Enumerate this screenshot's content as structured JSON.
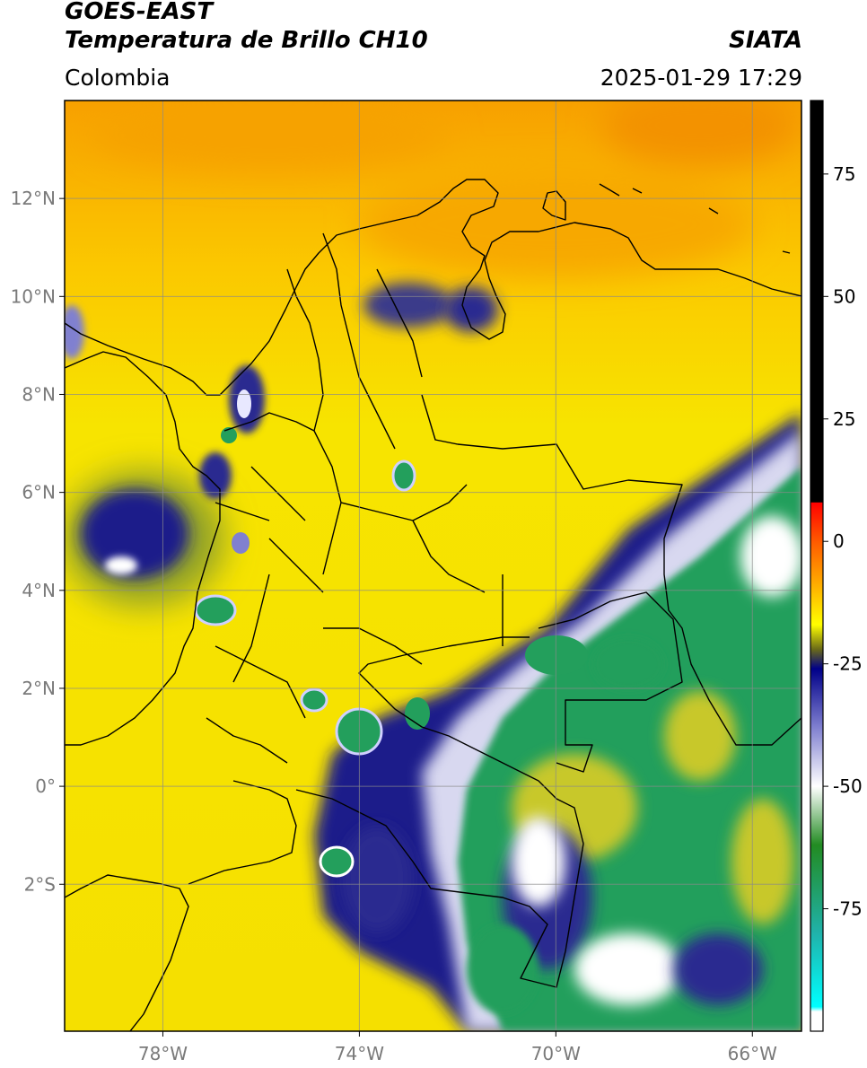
{
  "header": {
    "title_line1": "GOES-EAST",
    "title_line2": "Temperatura de Brillo CH10",
    "brand": "SIATA",
    "region": "Colombia",
    "timestamp": "2025-01-29 17:29"
  },
  "map": {
    "lon_range": [
      -80,
      -65
    ],
    "lat_range": [
      -5,
      14
    ],
    "lon_ticks": [
      {
        "value": -78,
        "label": "78°W"
      },
      {
        "value": -74,
        "label": "74°W"
      },
      {
        "value": -70,
        "label": "70°W"
      },
      {
        "value": -66,
        "label": "66°W"
      }
    ],
    "lat_ticks": [
      {
        "value": 12,
        "label": "12°N"
      },
      {
        "value": 10,
        "label": "10°N"
      },
      {
        "value": 8,
        "label": "8°N"
      },
      {
        "value": 6,
        "label": "6°N"
      },
      {
        "value": 4,
        "label": "4°N"
      },
      {
        "value": 2,
        "label": "2°N"
      },
      {
        "value": 0,
        "label": "0°"
      },
      {
        "value": -2,
        "label": "2°S"
      }
    ],
    "grid": true
  },
  "colorbar": {
    "range": [
      -100,
      90
    ],
    "ticks": [
      {
        "value": 75,
        "label": "75"
      },
      {
        "value": 50,
        "label": "50"
      },
      {
        "value": 25,
        "label": "25"
      },
      {
        "value": 0,
        "label": "0"
      },
      {
        "value": -25,
        "label": "-25"
      },
      {
        "value": -50,
        "label": "-50"
      },
      {
        "value": -75,
        "label": "-75"
      }
    ],
    "stops": [
      {
        "value": 90,
        "color": "#000000"
      },
      {
        "value": 8,
        "color": "#000000"
      },
      {
        "value": 7.9,
        "color": "#ff0000"
      },
      {
        "value": 0,
        "color": "#ff5a00"
      },
      {
        "value": -8,
        "color": "#ffa500"
      },
      {
        "value": -17,
        "color": "#ffff00"
      },
      {
        "value": -22,
        "color": "#6b6b18"
      },
      {
        "value": -26,
        "color": "#000088"
      },
      {
        "value": -38,
        "color": "#8080d0"
      },
      {
        "value": -50,
        "color": "#ffffff"
      },
      {
        "value": -62,
        "color": "#228b22"
      },
      {
        "value": -80,
        "color": "#20b2aa"
      },
      {
        "value": -95,
        "color": "#00ffff"
      },
      {
        "value": -96,
        "color": "#ffffff"
      },
      {
        "value": -100,
        "color": "#ffffff"
      }
    ]
  },
  "colors": {
    "warm_ocean": "#f7a500",
    "land_yellow": "#f2e600",
    "cold_green": "#239f5c",
    "deep_cloud": "#1a1a8a",
    "boundary": "#000000",
    "grid": "#9a9a9a"
  }
}
